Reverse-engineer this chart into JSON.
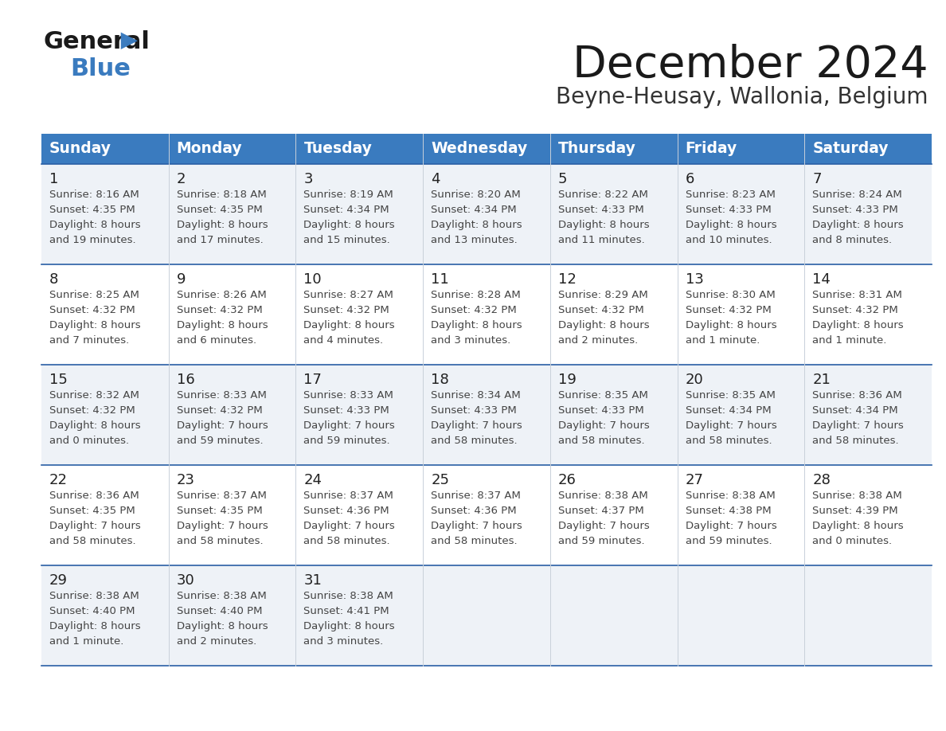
{
  "title": "December 2024",
  "subtitle": "Beyne-Heusay, Wallonia, Belgium",
  "days_of_week": [
    "Sunday",
    "Monday",
    "Tuesday",
    "Wednesday",
    "Thursday",
    "Friday",
    "Saturday"
  ],
  "header_bg": "#3a7bbf",
  "header_text": "#ffffff",
  "row_bg_light": "#eef2f7",
  "row_bg_white": "#ffffff",
  "border_color": "#2a5fa5",
  "text_color": "#444444",
  "day_num_color": "#222222",
  "calendar_data": [
    {
      "day": 1,
      "col": 0,
      "row": 0,
      "sunrise": "8:16 AM",
      "sunset": "4:35 PM",
      "daylight": "8 hours",
      "daylight2": "and 19 minutes."
    },
    {
      "day": 2,
      "col": 1,
      "row": 0,
      "sunrise": "8:18 AM",
      "sunset": "4:35 PM",
      "daylight": "8 hours",
      "daylight2": "and 17 minutes."
    },
    {
      "day": 3,
      "col": 2,
      "row": 0,
      "sunrise": "8:19 AM",
      "sunset": "4:34 PM",
      "daylight": "8 hours",
      "daylight2": "and 15 minutes."
    },
    {
      "day": 4,
      "col": 3,
      "row": 0,
      "sunrise": "8:20 AM",
      "sunset": "4:34 PM",
      "daylight": "8 hours",
      "daylight2": "and 13 minutes."
    },
    {
      "day": 5,
      "col": 4,
      "row": 0,
      "sunrise": "8:22 AM",
      "sunset": "4:33 PM",
      "daylight": "8 hours",
      "daylight2": "and 11 minutes."
    },
    {
      "day": 6,
      "col": 5,
      "row": 0,
      "sunrise": "8:23 AM",
      "sunset": "4:33 PM",
      "daylight": "8 hours",
      "daylight2": "and 10 minutes."
    },
    {
      "day": 7,
      "col": 6,
      "row": 0,
      "sunrise": "8:24 AM",
      "sunset": "4:33 PM",
      "daylight": "8 hours",
      "daylight2": "and 8 minutes."
    },
    {
      "day": 8,
      "col": 0,
      "row": 1,
      "sunrise": "8:25 AM",
      "sunset": "4:32 PM",
      "daylight": "8 hours",
      "daylight2": "and 7 minutes."
    },
    {
      "day": 9,
      "col": 1,
      "row": 1,
      "sunrise": "8:26 AM",
      "sunset": "4:32 PM",
      "daylight": "8 hours",
      "daylight2": "and 6 minutes."
    },
    {
      "day": 10,
      "col": 2,
      "row": 1,
      "sunrise": "8:27 AM",
      "sunset": "4:32 PM",
      "daylight": "8 hours",
      "daylight2": "and 4 minutes."
    },
    {
      "day": 11,
      "col": 3,
      "row": 1,
      "sunrise": "8:28 AM",
      "sunset": "4:32 PM",
      "daylight": "8 hours",
      "daylight2": "and 3 minutes."
    },
    {
      "day": 12,
      "col": 4,
      "row": 1,
      "sunrise": "8:29 AM",
      "sunset": "4:32 PM",
      "daylight": "8 hours",
      "daylight2": "and 2 minutes."
    },
    {
      "day": 13,
      "col": 5,
      "row": 1,
      "sunrise": "8:30 AM",
      "sunset": "4:32 PM",
      "daylight": "8 hours",
      "daylight2": "and 1 minute."
    },
    {
      "day": 14,
      "col": 6,
      "row": 1,
      "sunrise": "8:31 AM",
      "sunset": "4:32 PM",
      "daylight": "8 hours",
      "daylight2": "and 1 minute."
    },
    {
      "day": 15,
      "col": 0,
      "row": 2,
      "sunrise": "8:32 AM",
      "sunset": "4:32 PM",
      "daylight": "8 hours",
      "daylight2": "and 0 minutes."
    },
    {
      "day": 16,
      "col": 1,
      "row": 2,
      "sunrise": "8:33 AM",
      "sunset": "4:32 PM",
      "daylight": "7 hours",
      "daylight2": "and 59 minutes."
    },
    {
      "day": 17,
      "col": 2,
      "row": 2,
      "sunrise": "8:33 AM",
      "sunset": "4:33 PM",
      "daylight": "7 hours",
      "daylight2": "and 59 minutes."
    },
    {
      "day": 18,
      "col": 3,
      "row": 2,
      "sunrise": "8:34 AM",
      "sunset": "4:33 PM",
      "daylight": "7 hours",
      "daylight2": "and 58 minutes."
    },
    {
      "day": 19,
      "col": 4,
      "row": 2,
      "sunrise": "8:35 AM",
      "sunset": "4:33 PM",
      "daylight": "7 hours",
      "daylight2": "and 58 minutes."
    },
    {
      "day": 20,
      "col": 5,
      "row": 2,
      "sunrise": "8:35 AM",
      "sunset": "4:34 PM",
      "daylight": "7 hours",
      "daylight2": "and 58 minutes."
    },
    {
      "day": 21,
      "col": 6,
      "row": 2,
      "sunrise": "8:36 AM",
      "sunset": "4:34 PM",
      "daylight": "7 hours",
      "daylight2": "and 58 minutes."
    },
    {
      "day": 22,
      "col": 0,
      "row": 3,
      "sunrise": "8:36 AM",
      "sunset": "4:35 PM",
      "daylight": "7 hours",
      "daylight2": "and 58 minutes."
    },
    {
      "day": 23,
      "col": 1,
      "row": 3,
      "sunrise": "8:37 AM",
      "sunset": "4:35 PM",
      "daylight": "7 hours",
      "daylight2": "and 58 minutes."
    },
    {
      "day": 24,
      "col": 2,
      "row": 3,
      "sunrise": "8:37 AM",
      "sunset": "4:36 PM",
      "daylight": "7 hours",
      "daylight2": "and 58 minutes."
    },
    {
      "day": 25,
      "col": 3,
      "row": 3,
      "sunrise": "8:37 AM",
      "sunset": "4:36 PM",
      "daylight": "7 hours",
      "daylight2": "and 58 minutes."
    },
    {
      "day": 26,
      "col": 4,
      "row": 3,
      "sunrise": "8:38 AM",
      "sunset": "4:37 PM",
      "daylight": "7 hours",
      "daylight2": "and 59 minutes."
    },
    {
      "day": 27,
      "col": 5,
      "row": 3,
      "sunrise": "8:38 AM",
      "sunset": "4:38 PM",
      "daylight": "7 hours",
      "daylight2": "and 59 minutes."
    },
    {
      "day": 28,
      "col": 6,
      "row": 3,
      "sunrise": "8:38 AM",
      "sunset": "4:39 PM",
      "daylight": "8 hours",
      "daylight2": "and 0 minutes."
    },
    {
      "day": 29,
      "col": 0,
      "row": 4,
      "sunrise": "8:38 AM",
      "sunset": "4:40 PM",
      "daylight": "8 hours",
      "daylight2": "and 1 minute."
    },
    {
      "day": 30,
      "col": 1,
      "row": 4,
      "sunrise": "8:38 AM",
      "sunset": "4:40 PM",
      "daylight": "8 hours",
      "daylight2": "and 2 minutes."
    },
    {
      "day": 31,
      "col": 2,
      "row": 4,
      "sunrise": "8:38 AM",
      "sunset": "4:41 PM",
      "daylight": "8 hours",
      "daylight2": "and 3 minutes."
    }
  ]
}
